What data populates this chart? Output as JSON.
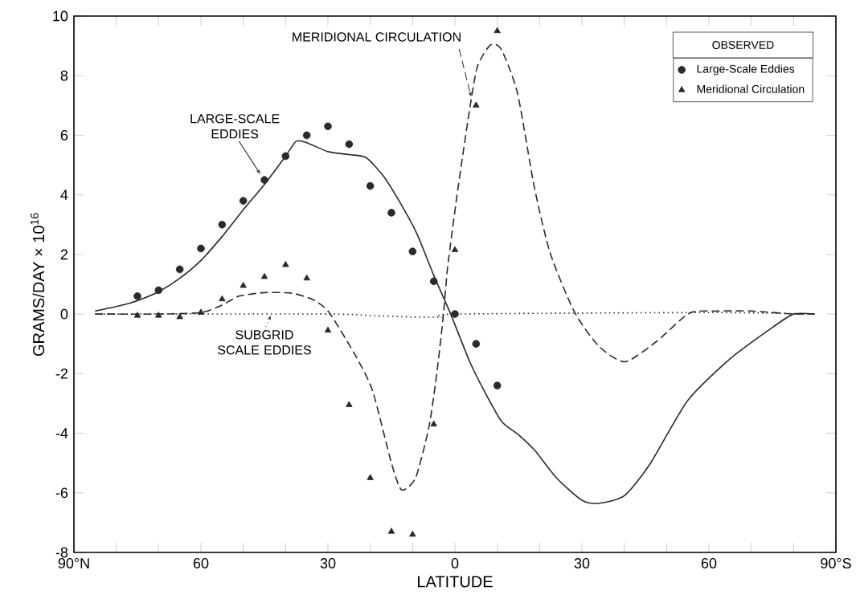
{
  "chart_data": {
    "type": "line",
    "xlabel": "LATITUDE",
    "ylabel": "GRAMS/DAY × 10$^{16}$",
    "legend_title": "OBSERVED",
    "legend": "top right",
    "xlim": [
      90,
      -90
    ],
    "ylim": [
      -8,
      10
    ],
    "xticks": [
      {
        "value": 90,
        "label": "90°N"
      },
      {
        "value": 80,
        "label": null
      },
      {
        "value": 70,
        "label": null
      },
      {
        "value": 60,
        "label": "60"
      },
      {
        "value": 50,
        "label": null
      },
      {
        "value": 40,
        "label": null
      },
      {
        "value": 30,
        "label": "30"
      },
      {
        "value": 20,
        "label": null
      },
      {
        "value": 10,
        "label": null
      },
      {
        "value": 0,
        "label": "0"
      },
      {
        "value": -10,
        "label": null
      },
      {
        "value": -20,
        "label": null
      },
      {
        "value": -30,
        "label": "30"
      },
      {
        "value": -40,
        "label": null
      },
      {
        "value": -50,
        "label": null
      },
      {
        "value": -60,
        "label": "60"
      },
      {
        "value": -70,
        "label": null
      },
      {
        "value": -80,
        "label": null
      },
      {
        "value": -90,
        "label": "90°S"
      }
    ],
    "yticks": [
      -8,
      -6,
      -4,
      -2,
      0,
      2,
      4,
      6,
      8,
      10
    ],
    "series": [
      {
        "name": "Large-Scale Eddies",
        "type": "scatter",
        "marker": "circle",
        "color": "#2a2a2a",
        "x": [
          75,
          70,
          65,
          60,
          55,
          50,
          45,
          40,
          35,
          30,
          25,
          20,
          15,
          10,
          5,
          0,
          -5,
          -10
        ],
        "values": [
          0.6,
          0.8,
          1.5,
          2.2,
          3.0,
          3.8,
          4.5,
          5.3,
          6.0,
          6.3,
          5.7,
          4.3,
          3.4,
          2.1,
          1.1,
          0.0,
          -1.0,
          -2.4
        ]
      },
      {
        "name": "Meridional Circulation",
        "type": "scatter",
        "marker": "triangle",
        "color": "#2a2a2a",
        "x": [
          75,
          70,
          65,
          60,
          55,
          50,
          45,
          40,
          35,
          30,
          25,
          20,
          15,
          10,
          5,
          0,
          -5,
          -10
        ],
        "values": [
          -0.05,
          -0.05,
          -0.1,
          0.05,
          0.5,
          0.95,
          1.25,
          1.65,
          1.2,
          -0.55,
          -3.05,
          -5.5,
          -7.3,
          -7.4,
          -3.7,
          2.15,
          7.0,
          9.5
        ]
      },
      {
        "name": "LARGE-SCALE EDDIES",
        "type": "line",
        "line_style": "solid",
        "color": "#2a2a2a",
        "x": [
          85,
          80,
          75,
          70,
          65,
          60,
          55,
          50,
          45,
          40,
          37.5,
          35,
          30,
          25,
          21,
          17,
          13,
          9,
          5,
          1,
          -3.5,
          -7,
          -11,
          -15,
          -19,
          -24,
          -30,
          -34,
          -40,
          -46,
          -55,
          -65,
          -75,
          -80,
          -85
        ],
        "values": [
          0.1,
          0.25,
          0.45,
          0.75,
          1.2,
          1.8,
          2.6,
          3.5,
          4.35,
          5.3,
          5.8,
          5.75,
          5.45,
          5.35,
          5.25,
          4.65,
          3.75,
          2.7,
          1.3,
          0.0,
          -1.6,
          -2.6,
          -3.6,
          -4.05,
          -4.6,
          -5.5,
          -6.25,
          -6.35,
          -6.1,
          -5.05,
          -2.9,
          -1.5,
          -0.45,
          0.0,
          0.0
        ]
      },
      {
        "name": "MERIDIONAL CIRCULATION",
        "type": "line",
        "line_style": "dashed",
        "color": "#2a2a2a",
        "x": [
          85,
          70,
          60,
          55,
          51,
          45,
          38.5,
          33.5,
          29.7,
          23.3,
          19.4,
          15,
          12.6,
          9.3,
          6.1,
          4.2,
          2.7,
          1.7,
          -0.8,
          -3.4,
          -5.3,
          -8.4,
          -11,
          -14.8,
          -18.7,
          -22.5,
          -28.2,
          -34,
          -40.2,
          -47.8,
          -55.4,
          -62,
          -70,
          -80,
          -85
        ],
        "values": [
          0.0,
          0.0,
          0.05,
          0.3,
          0.6,
          0.72,
          0.7,
          0.48,
          0.05,
          -1.44,
          -2.6,
          -5.0,
          -5.9,
          -5.5,
          -3.76,
          -1.9,
          0.0,
          1.6,
          4.3,
          6.8,
          8.3,
          9.03,
          8.87,
          7.4,
          4.3,
          2.05,
          0.08,
          -1.08,
          -1.6,
          -0.9,
          0.03,
          0.1,
          0.1,
          0.0,
          0.0
        ]
      },
      {
        "name": "SUBGRID SCALE EDDIES",
        "type": "line",
        "line_style": "dotted",
        "color": "#2a2a2a",
        "x": [
          85,
          30,
          20,
          10,
          3,
          0,
          -60,
          -85
        ],
        "values": [
          0.0,
          0.0,
          -0.05,
          -0.1,
          -0.1,
          0.0,
          0.05,
          0.0
        ]
      }
    ]
  }
}
